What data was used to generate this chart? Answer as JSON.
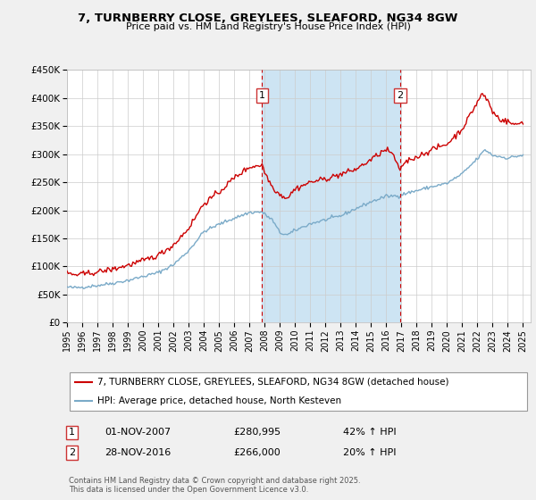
{
  "title": "7, TURNBERRY CLOSE, GREYLEES, SLEAFORD, NG34 8GW",
  "subtitle": "Price paid vs. HM Land Registry's House Price Index (HPI)",
  "legend_label_red": "7, TURNBERRY CLOSE, GREYLEES, SLEAFORD, NG34 8GW (detached house)",
  "legend_label_blue": "HPI: Average price, detached house, North Kesteven",
  "ylim": [
    0,
    450000
  ],
  "yticks": [
    0,
    50000,
    100000,
    150000,
    200000,
    250000,
    300000,
    350000,
    400000,
    450000
  ],
  "ytick_labels": [
    "£0",
    "£50K",
    "£100K",
    "£150K",
    "£200K",
    "£250K",
    "£300K",
    "£350K",
    "£400K",
    "£450K"
  ],
  "xtick_years": [
    1995,
    1996,
    1997,
    1998,
    1999,
    2000,
    2001,
    2002,
    2003,
    2004,
    2005,
    2006,
    2007,
    2008,
    2009,
    2010,
    2011,
    2012,
    2013,
    2014,
    2015,
    2016,
    2017,
    2018,
    2019,
    2020,
    2021,
    2022,
    2023,
    2024,
    2025
  ],
  "vline1_x": 2007.84,
  "vline2_x": 2016.91,
  "vline1_label": "1",
  "vline2_label": "2",
  "sale1_date": "01-NOV-2007",
  "sale1_price": "£280,995",
  "sale1_hpi": "42% ↑ HPI",
  "sale2_date": "28-NOV-2016",
  "sale2_price": "£266,000",
  "sale2_hpi": "20% ↑ HPI",
  "footnote": "Contains HM Land Registry data © Crown copyright and database right 2025.\nThis data is licensed under the Open Government Licence v3.0.",
  "shaded_region_color": "#cde4f3",
  "red_color": "#cc0000",
  "blue_color": "#7aaac8",
  "vline_color": "#cc0000",
  "background_color": "#f0f0f0",
  "plot_bg_color": "#ffffff",
  "grid_color": "#cccccc",
  "legend_border_color": "#999999",
  "sale_box_color": "#cc3333"
}
